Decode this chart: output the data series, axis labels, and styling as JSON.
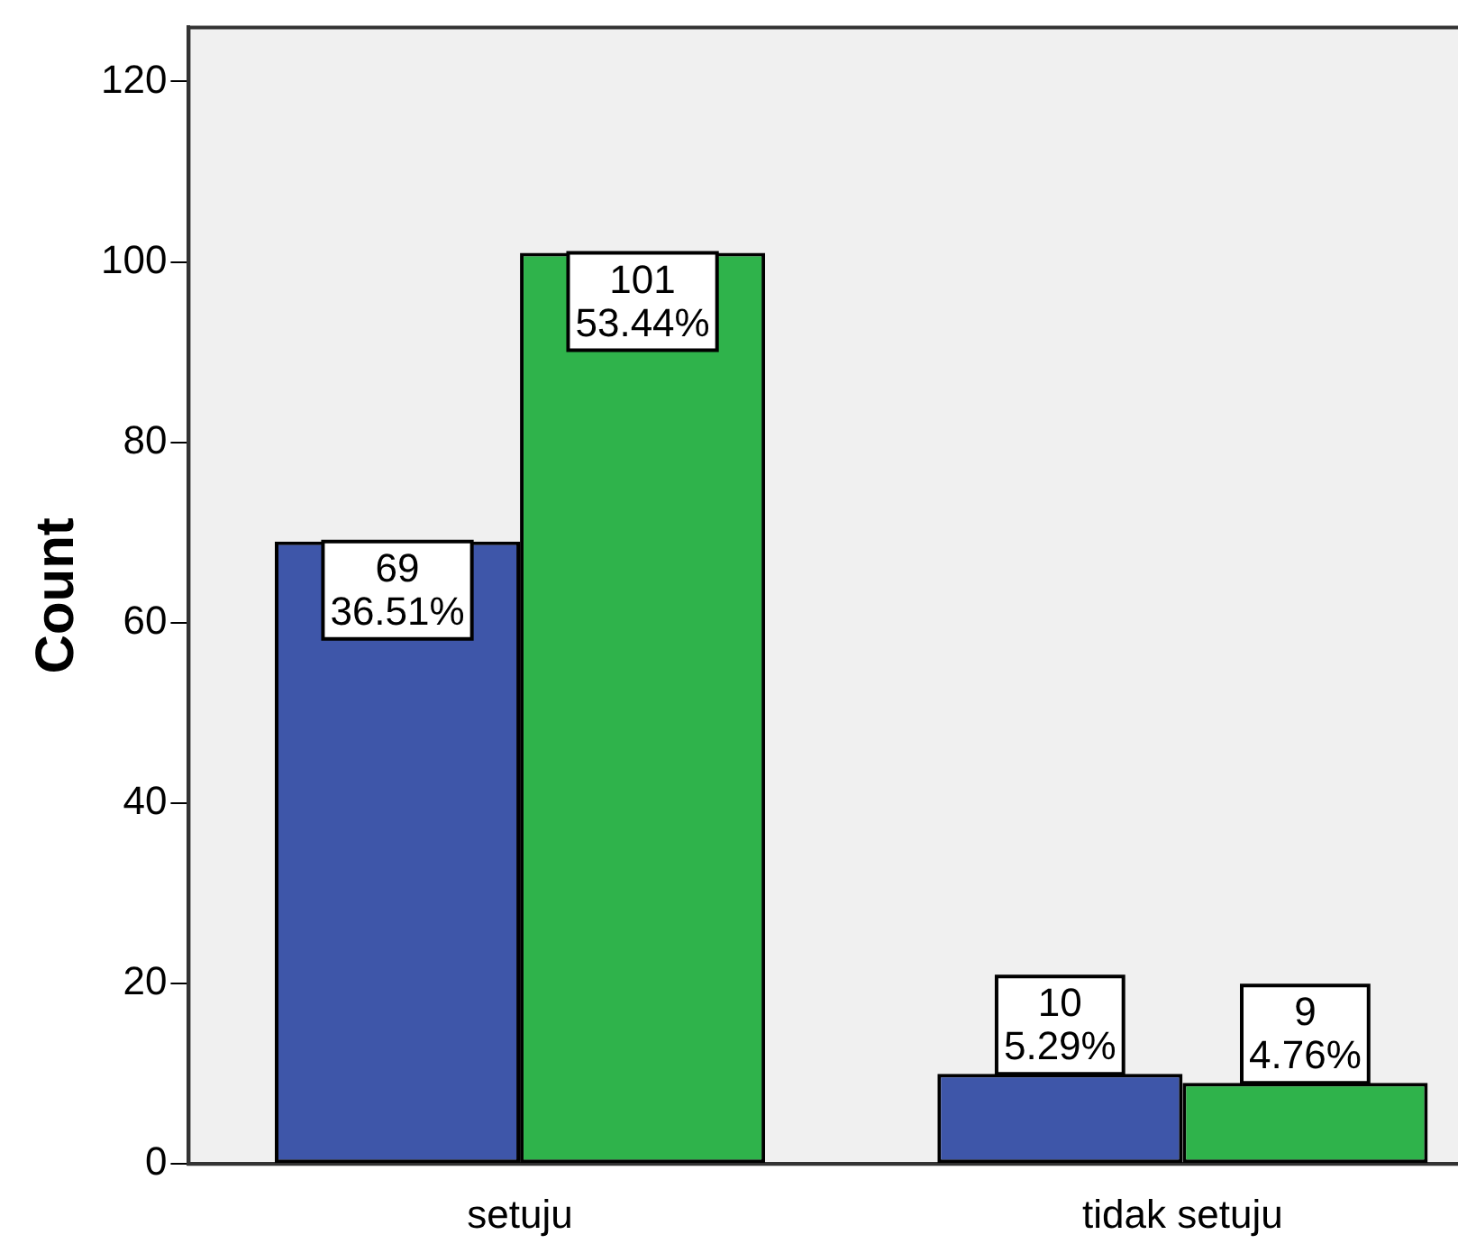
{
  "chart_data": {
    "type": "bar",
    "ylabel": "Count",
    "categories": [
      "setuju",
      "tidak setuju"
    ],
    "series": [
      {
        "color": "#3e56a9",
        "values": [
          69,
          10
        ],
        "value_labels": [
          "69\n36.51%",
          "10\n5.29%"
        ]
      },
      {
        "color": "#2fb34b",
        "values": [
          101,
          9
        ],
        "value_labels": [
          "101\n53.44%",
          "9\n4.76%"
        ]
      }
    ],
    "ylim": [
      0,
      126
    ],
    "yticks": [
      0,
      20,
      40,
      60,
      80,
      100,
      120
    ],
    "grid": false,
    "legend": false
  }
}
